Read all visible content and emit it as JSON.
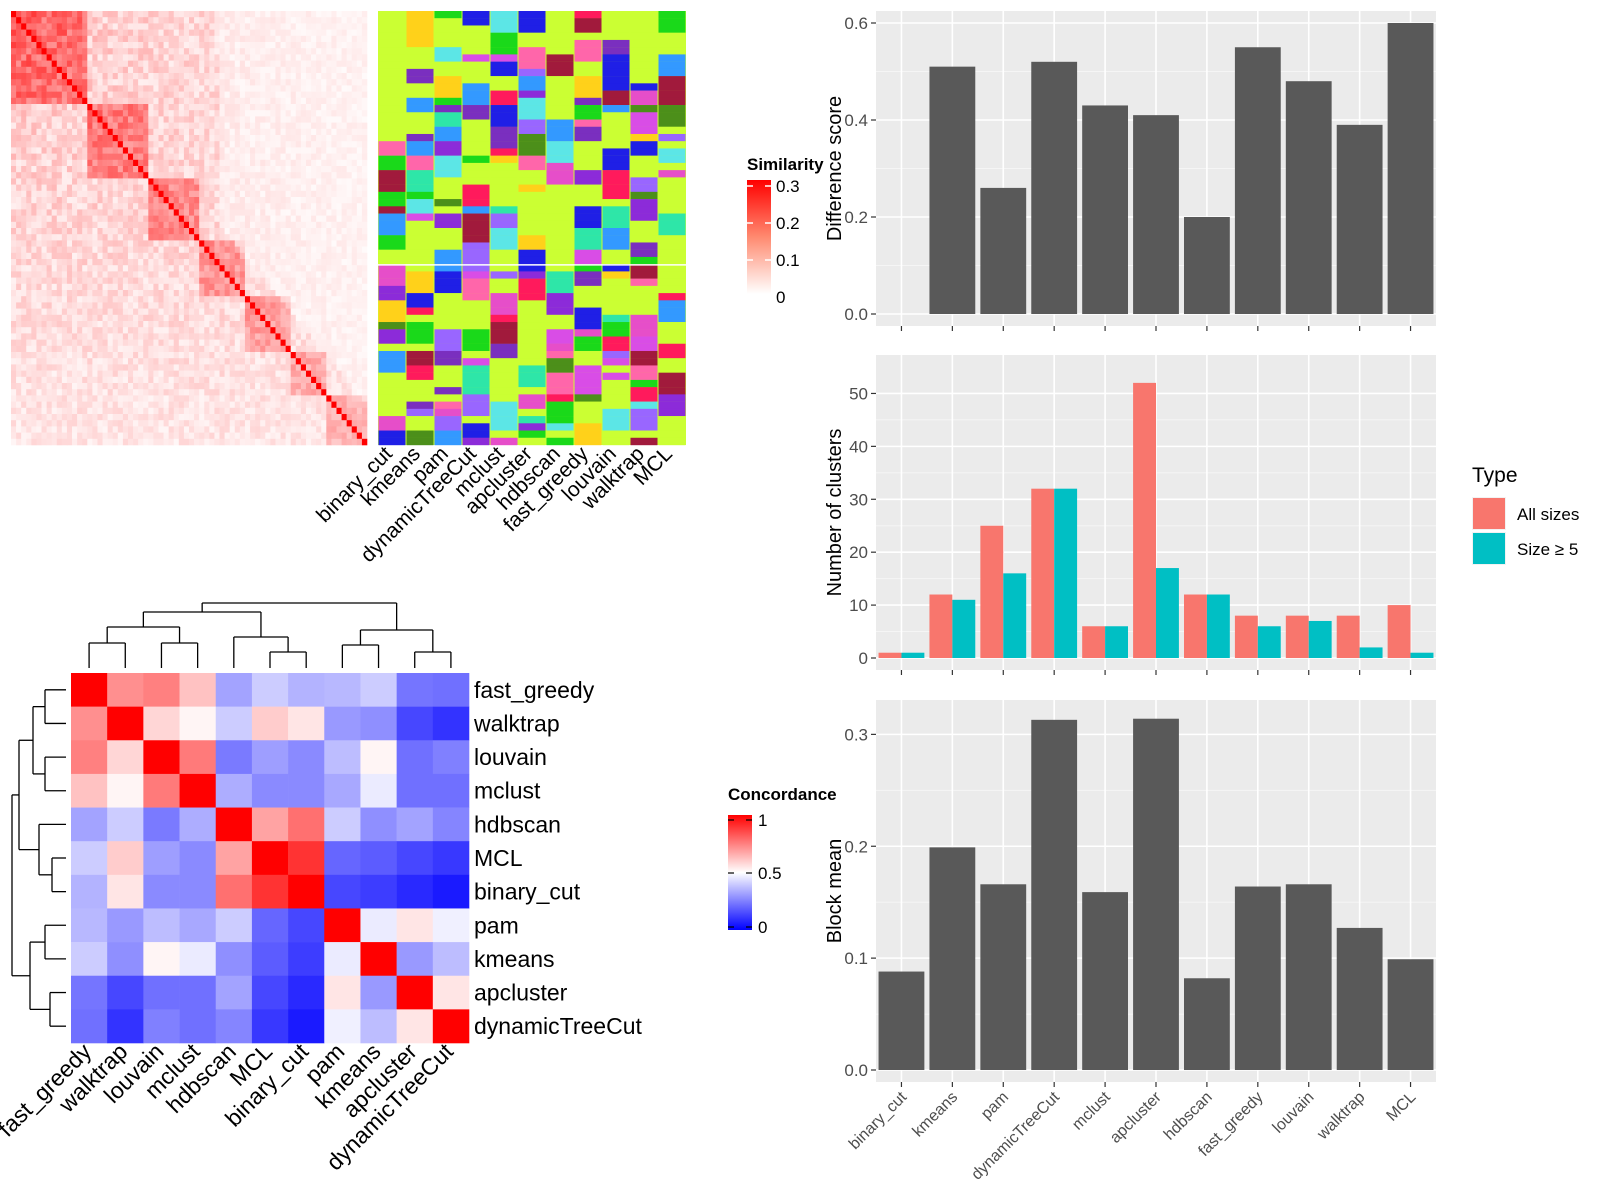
{
  "methods": [
    "binary_cut",
    "kmeans",
    "pam",
    "dynamicTreeCut",
    "mclust",
    "apcluster",
    "hdbscan",
    "fast_greedy",
    "louvain",
    "walktrap",
    "MCL"
  ],
  "similarity_legend": {
    "title": "Similarity",
    "ticks": [
      "0.3",
      "0.2",
      "0.1",
      "0"
    ]
  },
  "concordance_legend": {
    "title": "Concordance",
    "ticks": [
      "1",
      "0.5",
      "0"
    ]
  },
  "membership_colors": [
    "#cbff33",
    "#1f1fe6",
    "#7a2fbf",
    "#e64ec9",
    "#ff1a5c",
    "#3399ff",
    "#2ee6a8",
    "#4c8f1a",
    "#d94de6",
    "#a11a3c",
    "#5ce6e6",
    "#9966ff",
    "#ff66aa",
    "#ffd11a",
    "#8c2bd9",
    "#1ad91a"
  ],
  "chart_data": [
    {
      "type": "heatmap",
      "name": "concordance",
      "order": [
        "fast_greedy",
        "walktrap",
        "louvain",
        "mclust",
        "hdbscan",
        "MCL",
        "binary_cut",
        "pam",
        "kmeans",
        "apcluster",
        "dynamicTreeCut"
      ],
      "matrix": [
        [
          1.0,
          0.72,
          0.75,
          0.62,
          0.32,
          0.4,
          0.35,
          0.36,
          0.4,
          0.23,
          0.22
        ],
        [
          0.72,
          1.0,
          0.58,
          0.52,
          0.4,
          0.6,
          0.55,
          0.3,
          0.28,
          0.14,
          0.1
        ],
        [
          0.75,
          0.58,
          1.0,
          0.76,
          0.24,
          0.31,
          0.27,
          0.37,
          0.52,
          0.22,
          0.25
        ],
        [
          0.62,
          0.52,
          0.76,
          1.0,
          0.34,
          0.27,
          0.27,
          0.33,
          0.46,
          0.22,
          0.22
        ],
        [
          0.32,
          0.4,
          0.24,
          0.34,
          1.0,
          0.68,
          0.78,
          0.4,
          0.28,
          0.32,
          0.26
        ],
        [
          0.4,
          0.6,
          0.31,
          0.27,
          0.68,
          1.0,
          0.9,
          0.2,
          0.18,
          0.14,
          0.11
        ],
        [
          0.35,
          0.55,
          0.27,
          0.27,
          0.78,
          0.9,
          1.0,
          0.14,
          0.12,
          0.08,
          0.05
        ],
        [
          0.36,
          0.3,
          0.37,
          0.33,
          0.4,
          0.2,
          0.14,
          1.0,
          0.46,
          0.55,
          0.47
        ],
        [
          0.4,
          0.28,
          0.52,
          0.46,
          0.28,
          0.18,
          0.12,
          0.46,
          1.0,
          0.3,
          0.37
        ],
        [
          0.23,
          0.14,
          0.22,
          0.22,
          0.32,
          0.14,
          0.08,
          0.55,
          0.3,
          1.0,
          0.55
        ],
        [
          0.22,
          0.1,
          0.25,
          0.22,
          0.26,
          0.11,
          0.05,
          0.47,
          0.37,
          0.55,
          1.0
        ]
      ],
      "legend_range": [
        0,
        1
      ]
    },
    {
      "type": "bar",
      "name": "difference-score",
      "ylabel": "Difference score",
      "ylim": [
        0,
        0.6
      ],
      "yticks": [
        "0.0",
        "0.2",
        "0.4",
        "0.6"
      ],
      "categories": [
        "binary_cut",
        "kmeans",
        "pam",
        "dynamicTreeCut",
        "mclust",
        "apcluster",
        "hdbscan",
        "fast_greedy",
        "louvain",
        "walktrap",
        "MCL"
      ],
      "values": [
        0.0,
        0.51,
        0.26,
        0.52,
        0.43,
        0.41,
        0.2,
        0.55,
        0.48,
        0.39,
        0.6
      ],
      "color": "#595959"
    },
    {
      "type": "bar",
      "name": "number-of-clusters",
      "ylabel": "Number of clusters",
      "ylim": [
        0,
        55
      ],
      "yticks": [
        "0",
        "10",
        "20",
        "30",
        "40",
        "50"
      ],
      "categories": [
        "binary_cut",
        "kmeans",
        "pam",
        "dynamicTreeCut",
        "mclust",
        "apcluster",
        "hdbscan",
        "fast_greedy",
        "louvain",
        "walktrap",
        "MCL"
      ],
      "legend": {
        "title": "Type",
        "position": "right"
      },
      "series": [
        {
          "name": "All sizes",
          "color": "#f8766d",
          "values": [
            1,
            12,
            25,
            32,
            6,
            52,
            12,
            8,
            8,
            8,
            10
          ]
        },
        {
          "name": "Size ≥ 5",
          "color": "#00bfc4",
          "values": [
            1,
            11,
            16,
            32,
            6,
            17,
            12,
            6,
            7,
            2,
            1
          ]
        }
      ]
    },
    {
      "type": "bar",
      "name": "block-mean",
      "ylabel": "Block mean",
      "ylim": [
        0,
        0.32
      ],
      "yticks": [
        "0.0",
        "0.1",
        "0.2",
        "0.3"
      ],
      "categories": [
        "binary_cut",
        "kmeans",
        "pam",
        "dynamicTreeCut",
        "mclust",
        "apcluster",
        "hdbscan",
        "fast_greedy",
        "louvain",
        "walktrap",
        "MCL"
      ],
      "values": [
        0.088,
        0.199,
        0.166,
        0.313,
        0.159,
        0.314,
        0.082,
        0.164,
        0.166,
        0.127,
        0.099
      ],
      "color": "#595959"
    }
  ]
}
